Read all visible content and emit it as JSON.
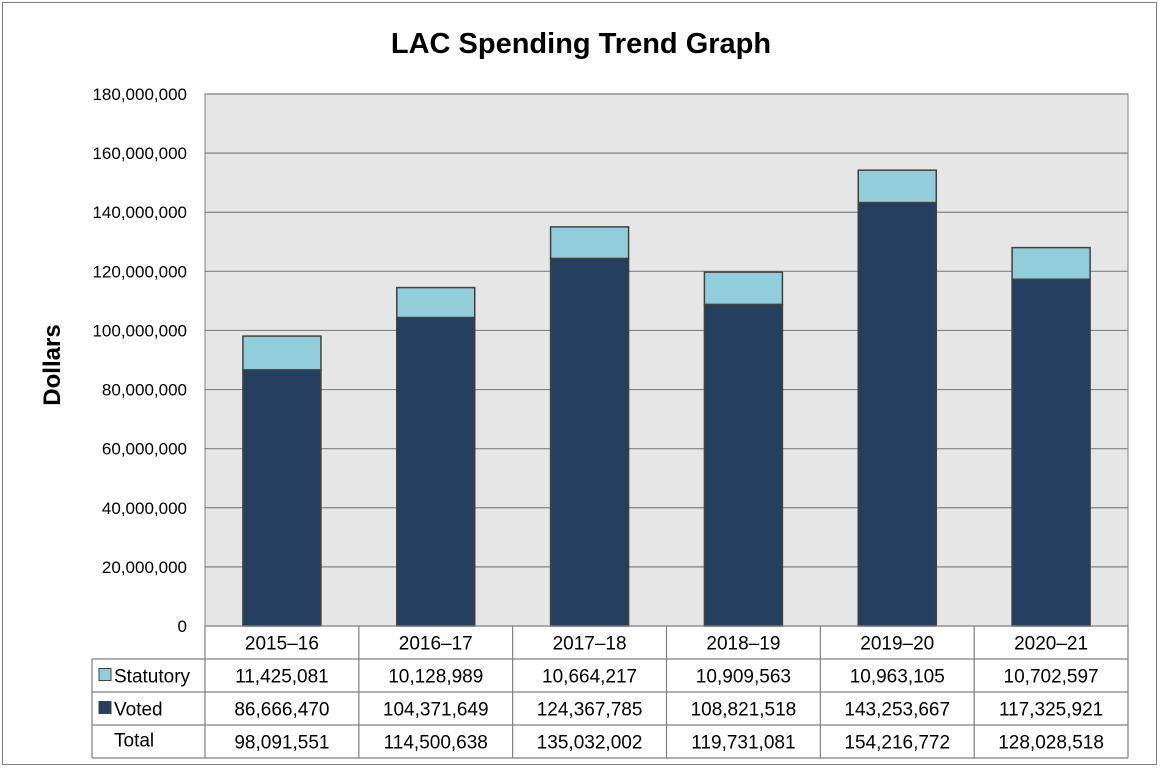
{
  "chart_data": {
    "type": "bar",
    "stacked": true,
    "title": "LAC Spending Trend Graph",
    "ylabel": "Dollars",
    "xlabel": "",
    "ylim": [
      0,
      180000000
    ],
    "yticks": [
      "0",
      "20,000,000",
      "40,000,000",
      "60,000,000",
      "80,000,000",
      "100,000,000",
      "120,000,000",
      "140,000,000",
      "160,000,000",
      "180,000,000"
    ],
    "categories": [
      "2015–16",
      "2016–17",
      "2017–18",
      "2018–19",
      "2019–20",
      "2020–21"
    ],
    "series": [
      {
        "name": "Voted",
        "color": "#243f60",
        "values": [
          86666470,
          104371649,
          124367785,
          108821518,
          143253667,
          117325921
        ],
        "labels": [
          "86,666,470",
          "104,371,649",
          "124,367,785",
          "108,821,518",
          "143,253,667",
          "117,325,921"
        ]
      },
      {
        "name": "Statutory",
        "color": "#92cddc",
        "values": [
          11425081,
          10128989,
          10664217,
          10909563,
          10963105,
          10702597
        ],
        "labels": [
          "11,425,081",
          "10,128,989",
          "10,664,217",
          "10,909,563",
          "10,963,105",
          "10,702,597"
        ]
      }
    ],
    "totals": {
      "name": "Total",
      "values": [
        98091551,
        114500638,
        135032002,
        119731081,
        154216772,
        128028518
      ],
      "labels": [
        "98,091,551",
        "114,500,638",
        "135,032,002",
        "119,731,081",
        "154,216,772",
        "128,028,518"
      ]
    },
    "grid": true,
    "legend": "data-table-left",
    "plot_background": "#e6e6e6"
  }
}
